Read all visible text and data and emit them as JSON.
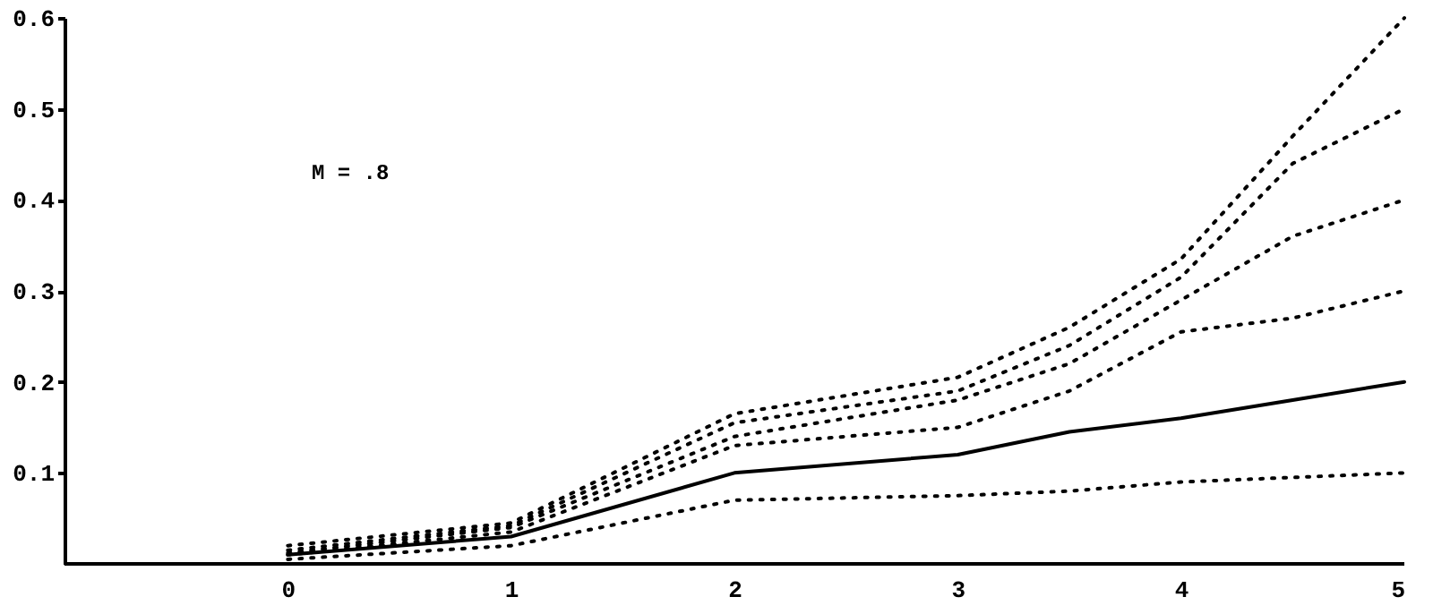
{
  "chart_data": {
    "type": "line",
    "x": [
      0,
      1,
      2,
      3,
      3.5,
      4,
      4.5,
      5
    ],
    "xlim": [
      -1,
      5
    ],
    "xticks": [
      0,
      1,
      2,
      3,
      4,
      5
    ],
    "ylim": [
      0,
      0.6
    ],
    "yticks": [
      0.1,
      0.2,
      0.3,
      0.4,
      0.5,
      0.6
    ],
    "grid": false,
    "marker": "none",
    "annotations": [
      "M = .8"
    ],
    "series": [
      {
        "color": "#000000",
        "line_style": "solid",
        "values": [
          0.01,
          0.03,
          0.1,
          0.12,
          0.145,
          0.16,
          0.18,
          0.2
        ]
      },
      {
        "color": "#000000",
        "line_style": "dotted",
        "values": [
          0.005,
          0.02,
          0.07,
          0.075,
          0.08,
          0.09,
          0.095,
          0.1
        ]
      },
      {
        "color": "#000000",
        "line_style": "dotted",
        "values": [
          0.01,
          0.035,
          0.13,
          0.15,
          0.19,
          0.255,
          0.27,
          0.3
        ]
      },
      {
        "color": "#000000",
        "line_style": "dotted",
        "values": [
          0.012,
          0.04,
          0.14,
          0.18,
          0.22,
          0.29,
          0.36,
          0.4
        ]
      },
      {
        "color": "#000000",
        "line_style": "dotted",
        "values": [
          0.015,
          0.042,
          0.155,
          0.19,
          0.24,
          0.315,
          0.44,
          0.5
        ]
      },
      {
        "color": "#000000",
        "line_style": "dotted",
        "values": [
          0.02,
          0.045,
          0.165,
          0.205,
          0.26,
          0.335,
          0.47,
          0.6
        ]
      }
    ]
  }
}
